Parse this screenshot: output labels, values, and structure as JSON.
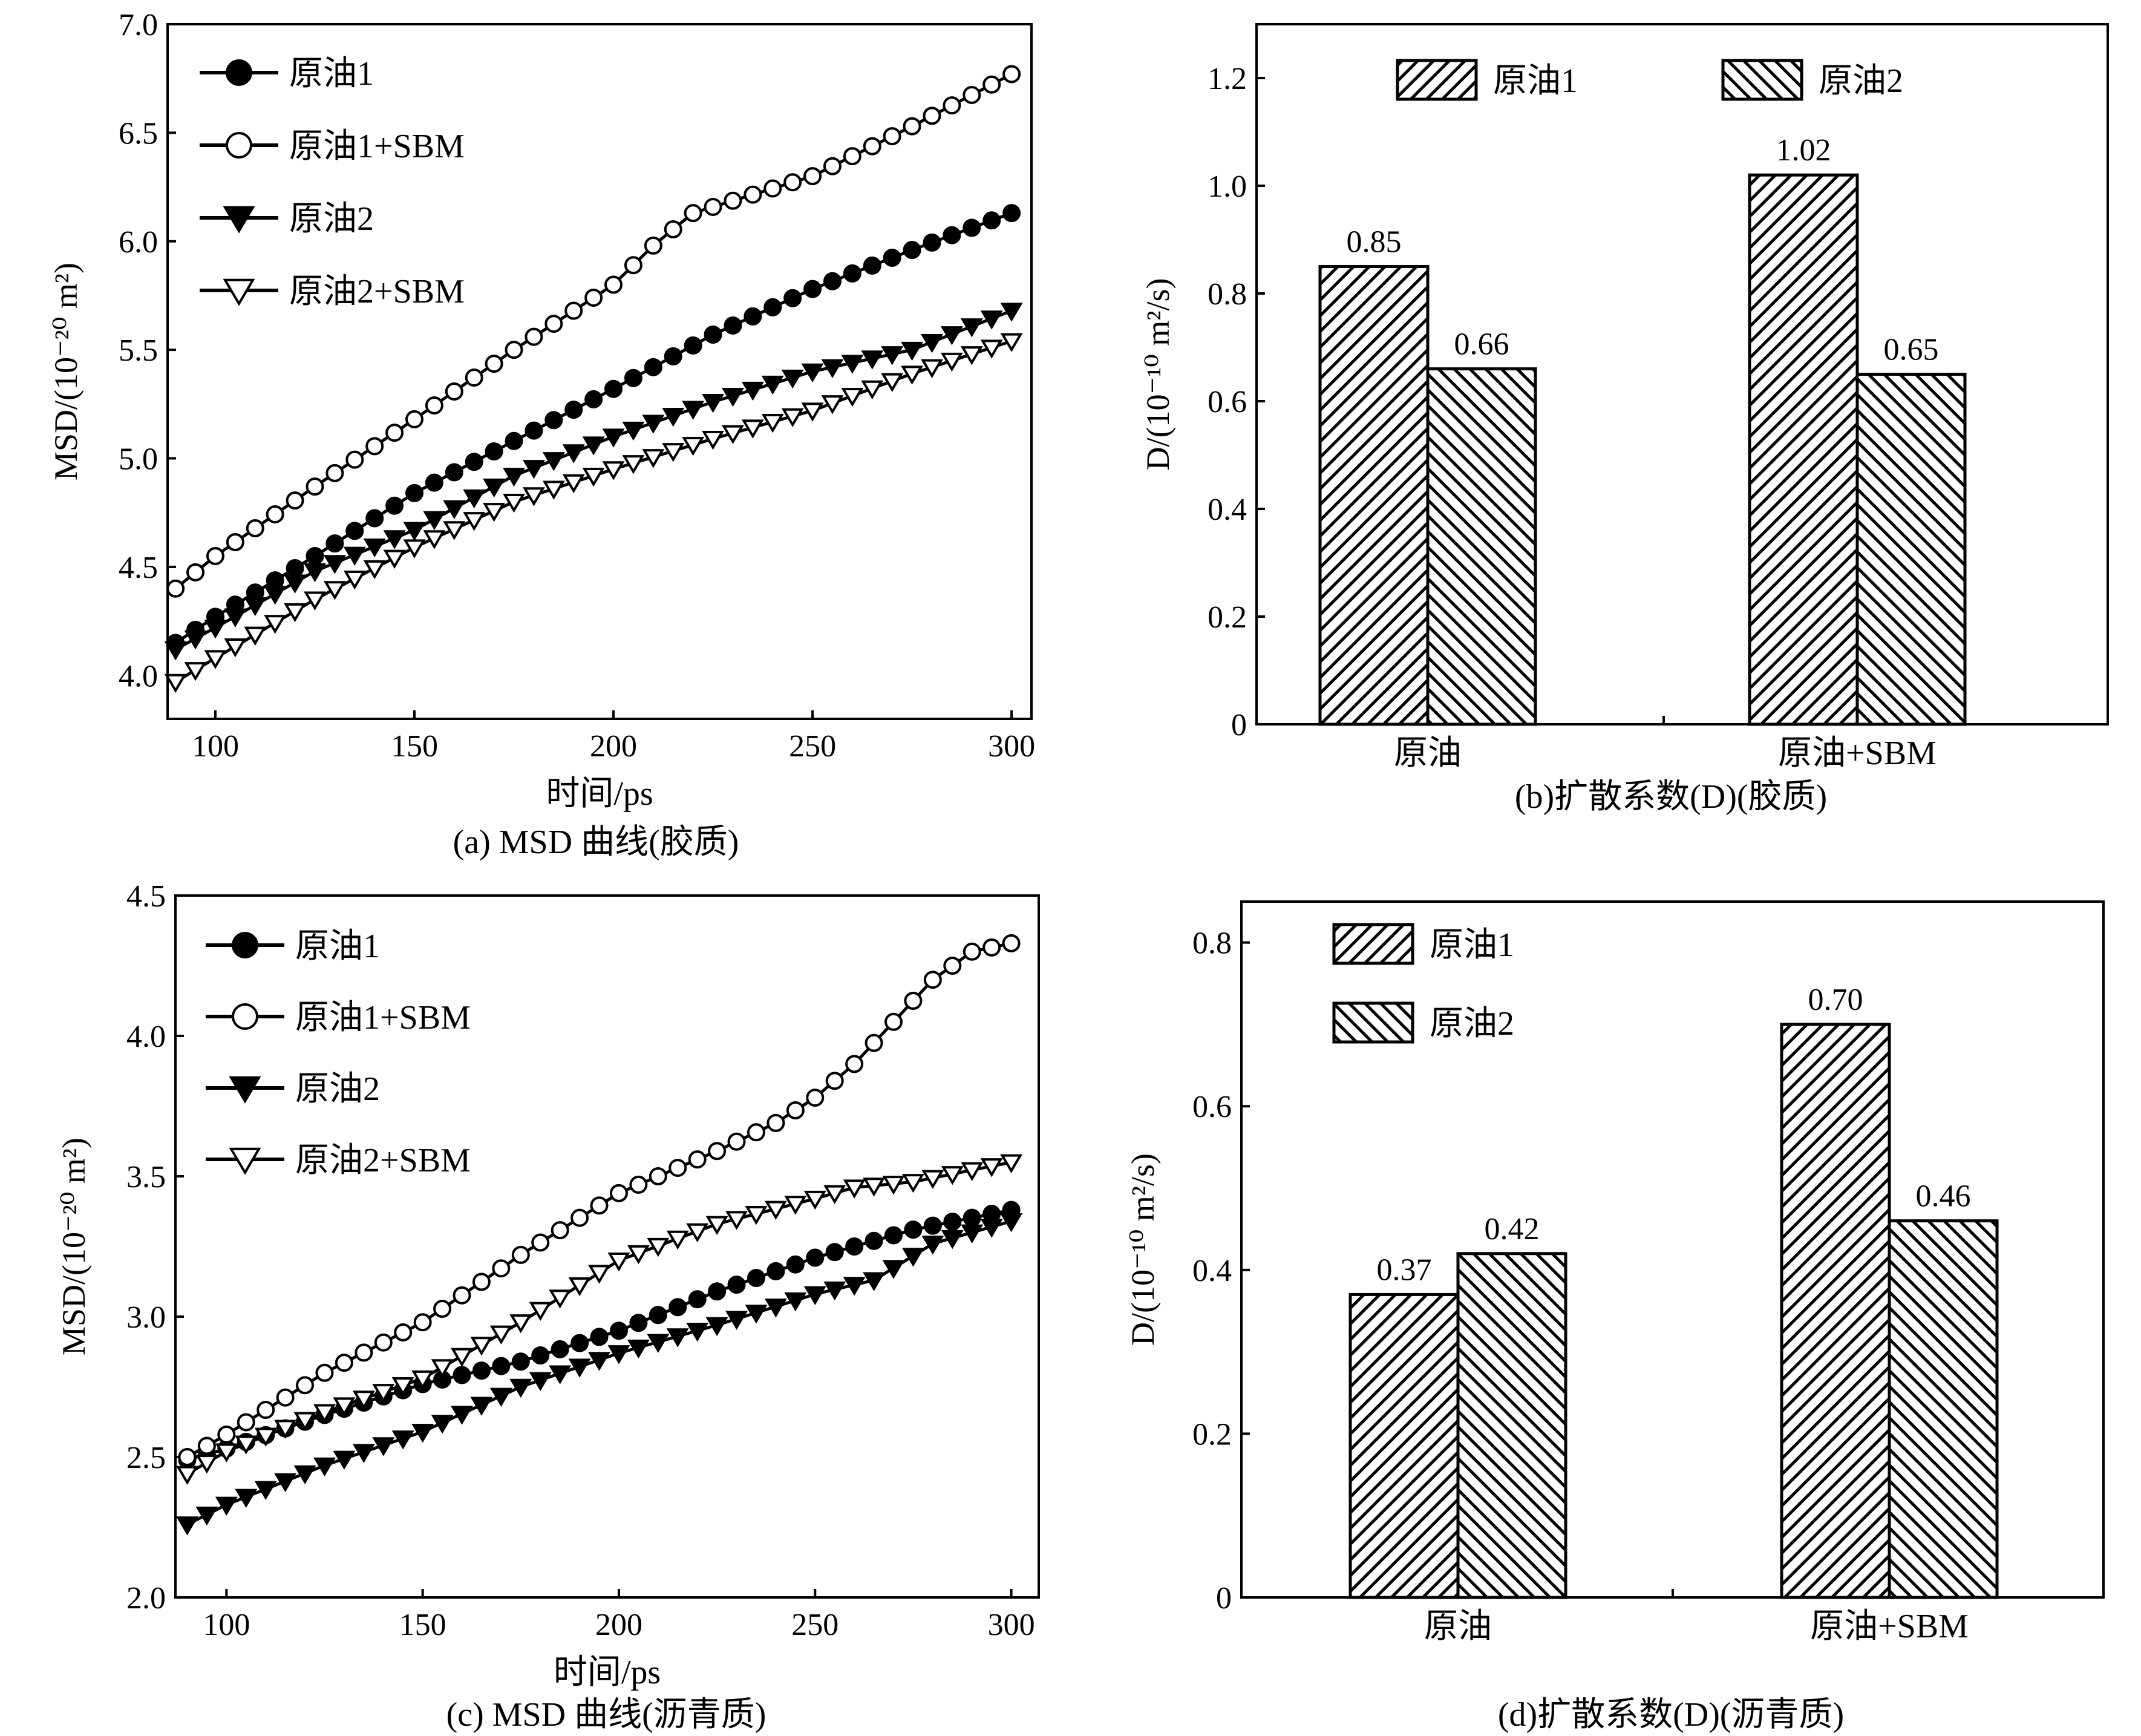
{
  "chart_data": [
    {
      "id": "a",
      "type": "line",
      "caption": "(a) MSD 曲线(胶质)",
      "xlabel": "时间/ps",
      "ylabel": "MSD/(10⁻²⁰ m²)",
      "xlim": [
        88,
        305
      ],
      "ylim": [
        3.8,
        7.0
      ],
      "xticks": [
        100,
        150,
        200,
        250,
        300
      ],
      "yticks": [
        4.0,
        4.5,
        5.0,
        5.5,
        6.0,
        6.5,
        7.0
      ],
      "ytick_labels": [
        "4.0",
        "4.5",
        "5.0",
        "5.5",
        "6.0",
        "6.5",
        "7.0"
      ],
      "x": {
        "start": 90,
        "end": 300,
        "step": 5
      },
      "series": [
        {
          "name": "原油1",
          "marker": "filled-circle",
          "points": [
            [
              90,
              4.15
            ],
            [
              100,
              4.27
            ],
            [
              125,
              4.55
            ],
            [
              150,
              4.84
            ],
            [
              175,
              5.08
            ],
            [
              200,
              5.32
            ],
            [
              225,
              5.57
            ],
            [
              250,
              5.78
            ],
            [
              275,
              5.96
            ],
            [
              300,
              6.13
            ]
          ]
        },
        {
          "name": "原油1+SBM",
          "marker": "open-circle",
          "points": [
            [
              90,
              4.4
            ],
            [
              100,
              4.55
            ],
            [
              125,
              4.87
            ],
            [
              150,
              5.18
            ],
            [
              175,
              5.5
            ],
            [
              190,
              5.68
            ],
            [
              200,
              5.8
            ],
            [
              210,
              5.98
            ],
            [
              220,
              6.13
            ],
            [
              250,
              6.3
            ],
            [
              275,
              6.53
            ],
            [
              300,
              6.77
            ]
          ]
        },
        {
          "name": "原油2",
          "marker": "filled-triangle-down",
          "points": [
            [
              90,
              4.12
            ],
            [
              100,
              4.22
            ],
            [
              125,
              4.48
            ],
            [
              150,
              4.67
            ],
            [
              175,
              4.92
            ],
            [
              200,
              5.1
            ],
            [
              225,
              5.26
            ],
            [
              250,
              5.4
            ],
            [
              275,
              5.5
            ],
            [
              300,
              5.68
            ]
          ]
        },
        {
          "name": "原油2+SBM",
          "marker": "open-triangle-down",
          "points": [
            [
              90,
              3.97
            ],
            [
              100,
              4.08
            ],
            [
              125,
              4.35
            ],
            [
              150,
              4.59
            ],
            [
              175,
              4.8
            ],
            [
              200,
              4.95
            ],
            [
              225,
              5.09
            ],
            [
              250,
              5.22
            ],
            [
              275,
              5.39
            ],
            [
              300,
              5.54
            ]
          ]
        }
      ]
    },
    {
      "id": "b",
      "type": "bar",
      "caption": "(b)扩散系数(D)(胶质)",
      "xlabel": "",
      "ylabel": "D/(10⁻¹⁰ m²/s)",
      "ylim": [
        0,
        1.3
      ],
      "yticks": [
        0,
        0.2,
        0.4,
        0.6,
        0.8,
        1.0,
        1.2
      ],
      "ytick_labels": [
        "0",
        "0.2",
        "0.4",
        "0.6",
        "0.8",
        "1.0",
        "1.2"
      ],
      "categories": [
        "原油",
        "原油+SBM"
      ],
      "series": [
        {
          "name": "原油1",
          "values": [
            0.85,
            1.02
          ],
          "labels": [
            "0.85",
            "1.02"
          ]
        },
        {
          "name": "原油2",
          "values": [
            0.66,
            0.65
          ],
          "labels": [
            "0.66",
            "0.65"
          ]
        }
      ]
    },
    {
      "id": "c",
      "type": "line",
      "caption": "(c) MSD 曲线(沥青质)",
      "xlabel": "时间/ps",
      "ylabel": "MSD/(10⁻²⁰ m²)",
      "xlim": [
        87,
        307
      ],
      "ylim": [
        2.0,
        4.5
      ],
      "xticks": [
        100,
        150,
        200,
        250,
        300
      ],
      "yticks": [
        2.0,
        2.5,
        3.0,
        3.5,
        4.0,
        4.5
      ],
      "ytick_labels": [
        "2.0",
        "2.5",
        "3.0",
        "3.5",
        "4.0",
        "4.5"
      ],
      "x": {
        "start": 90,
        "end": 300,
        "step": 5
      },
      "series": [
        {
          "name": "原油1",
          "marker": "filled-circle",
          "points": [
            [
              90,
              2.49
            ],
            [
              100,
              2.53
            ],
            [
              125,
              2.65
            ],
            [
              150,
              2.76
            ],
            [
              175,
              2.84
            ],
            [
              200,
              2.95
            ],
            [
              225,
              3.09
            ],
            [
              250,
              3.21
            ],
            [
              275,
              3.31
            ],
            [
              300,
              3.38
            ]
          ]
        },
        {
          "name": "原油1+SBM",
          "marker": "open-circle",
          "points": [
            [
              90,
              2.5
            ],
            [
              100,
              2.58
            ],
            [
              125,
              2.8
            ],
            [
              150,
              2.98
            ],
            [
              175,
              3.22
            ],
            [
              200,
              3.44
            ],
            [
              225,
              3.59
            ],
            [
              240,
              3.69
            ],
            [
              250,
              3.78
            ],
            [
              260,
              3.9
            ],
            [
              270,
              4.05
            ],
            [
              280,
              4.2
            ],
            [
              290,
              4.3
            ],
            [
              300,
              4.33
            ]
          ]
        },
        {
          "name": "原油2",
          "marker": "filled-triangle-down",
          "points": [
            [
              90,
              2.26
            ],
            [
              100,
              2.33
            ],
            [
              125,
              2.47
            ],
            [
              150,
              2.59
            ],
            [
              175,
              2.75
            ],
            [
              200,
              2.87
            ],
            [
              225,
              2.97
            ],
            [
              250,
              3.08
            ],
            [
              265,
              3.13
            ],
            [
              280,
              3.26
            ],
            [
              300,
              3.34
            ]
          ]
        },
        {
          "name": "原油2+SBM",
          "marker": "open-triangle-down",
          "points": [
            [
              90,
              2.44
            ],
            [
              100,
              2.52
            ],
            [
              125,
              2.66
            ],
            [
              150,
              2.78
            ],
            [
              175,
              2.98
            ],
            [
              200,
              3.2
            ],
            [
              225,
              3.33
            ],
            [
              250,
              3.42
            ],
            [
              260,
              3.46
            ],
            [
              275,
              3.48
            ],
            [
              300,
              3.55
            ]
          ]
        }
      ]
    },
    {
      "id": "d",
      "type": "bar",
      "caption": "(d)扩散系数(D)(沥青质)",
      "xlabel": "",
      "ylabel": "D/(10⁻¹⁰ m²/s)",
      "ylim": [
        0,
        0.85
      ],
      "yticks": [
        0,
        0.2,
        0.4,
        0.6,
        0.8
      ],
      "ytick_labels": [
        "0",
        "0.2",
        "0.4",
        "0.6",
        "0.8"
      ],
      "categories": [
        "原油",
        "原油+SBM"
      ],
      "series": [
        {
          "name": "原油1",
          "values": [
            0.37,
            0.7
          ],
          "labels": [
            "0.37",
            "0.70"
          ]
        },
        {
          "name": "原油2",
          "values": [
            0.42,
            0.46
          ],
          "labels": [
            "0.42",
            "0.46"
          ]
        }
      ]
    }
  ]
}
